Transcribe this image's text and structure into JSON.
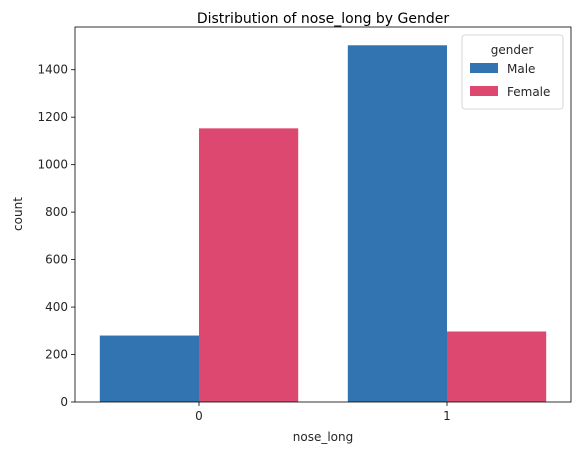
{
  "chart_data": {
    "type": "bar",
    "title": "Distribution of nose_long by Gender",
    "xlabel": "nose_long",
    "ylabel": "count",
    "categories": [
      "0",
      "1"
    ],
    "series": [
      {
        "name": "Male",
        "values": [
          280,
          1503
        ],
        "color": "#3274b1"
      },
      {
        "name": "Female",
        "values": [
          1153,
          297
        ],
        "color": "#dd4870"
      }
    ],
    "ylim": [
      0,
      1580
    ],
    "yticks": [
      0,
      200,
      400,
      600,
      800,
      1000,
      1200,
      1400
    ],
    "legend": {
      "title": "gender",
      "placement": "top-right"
    },
    "grid": false
  }
}
